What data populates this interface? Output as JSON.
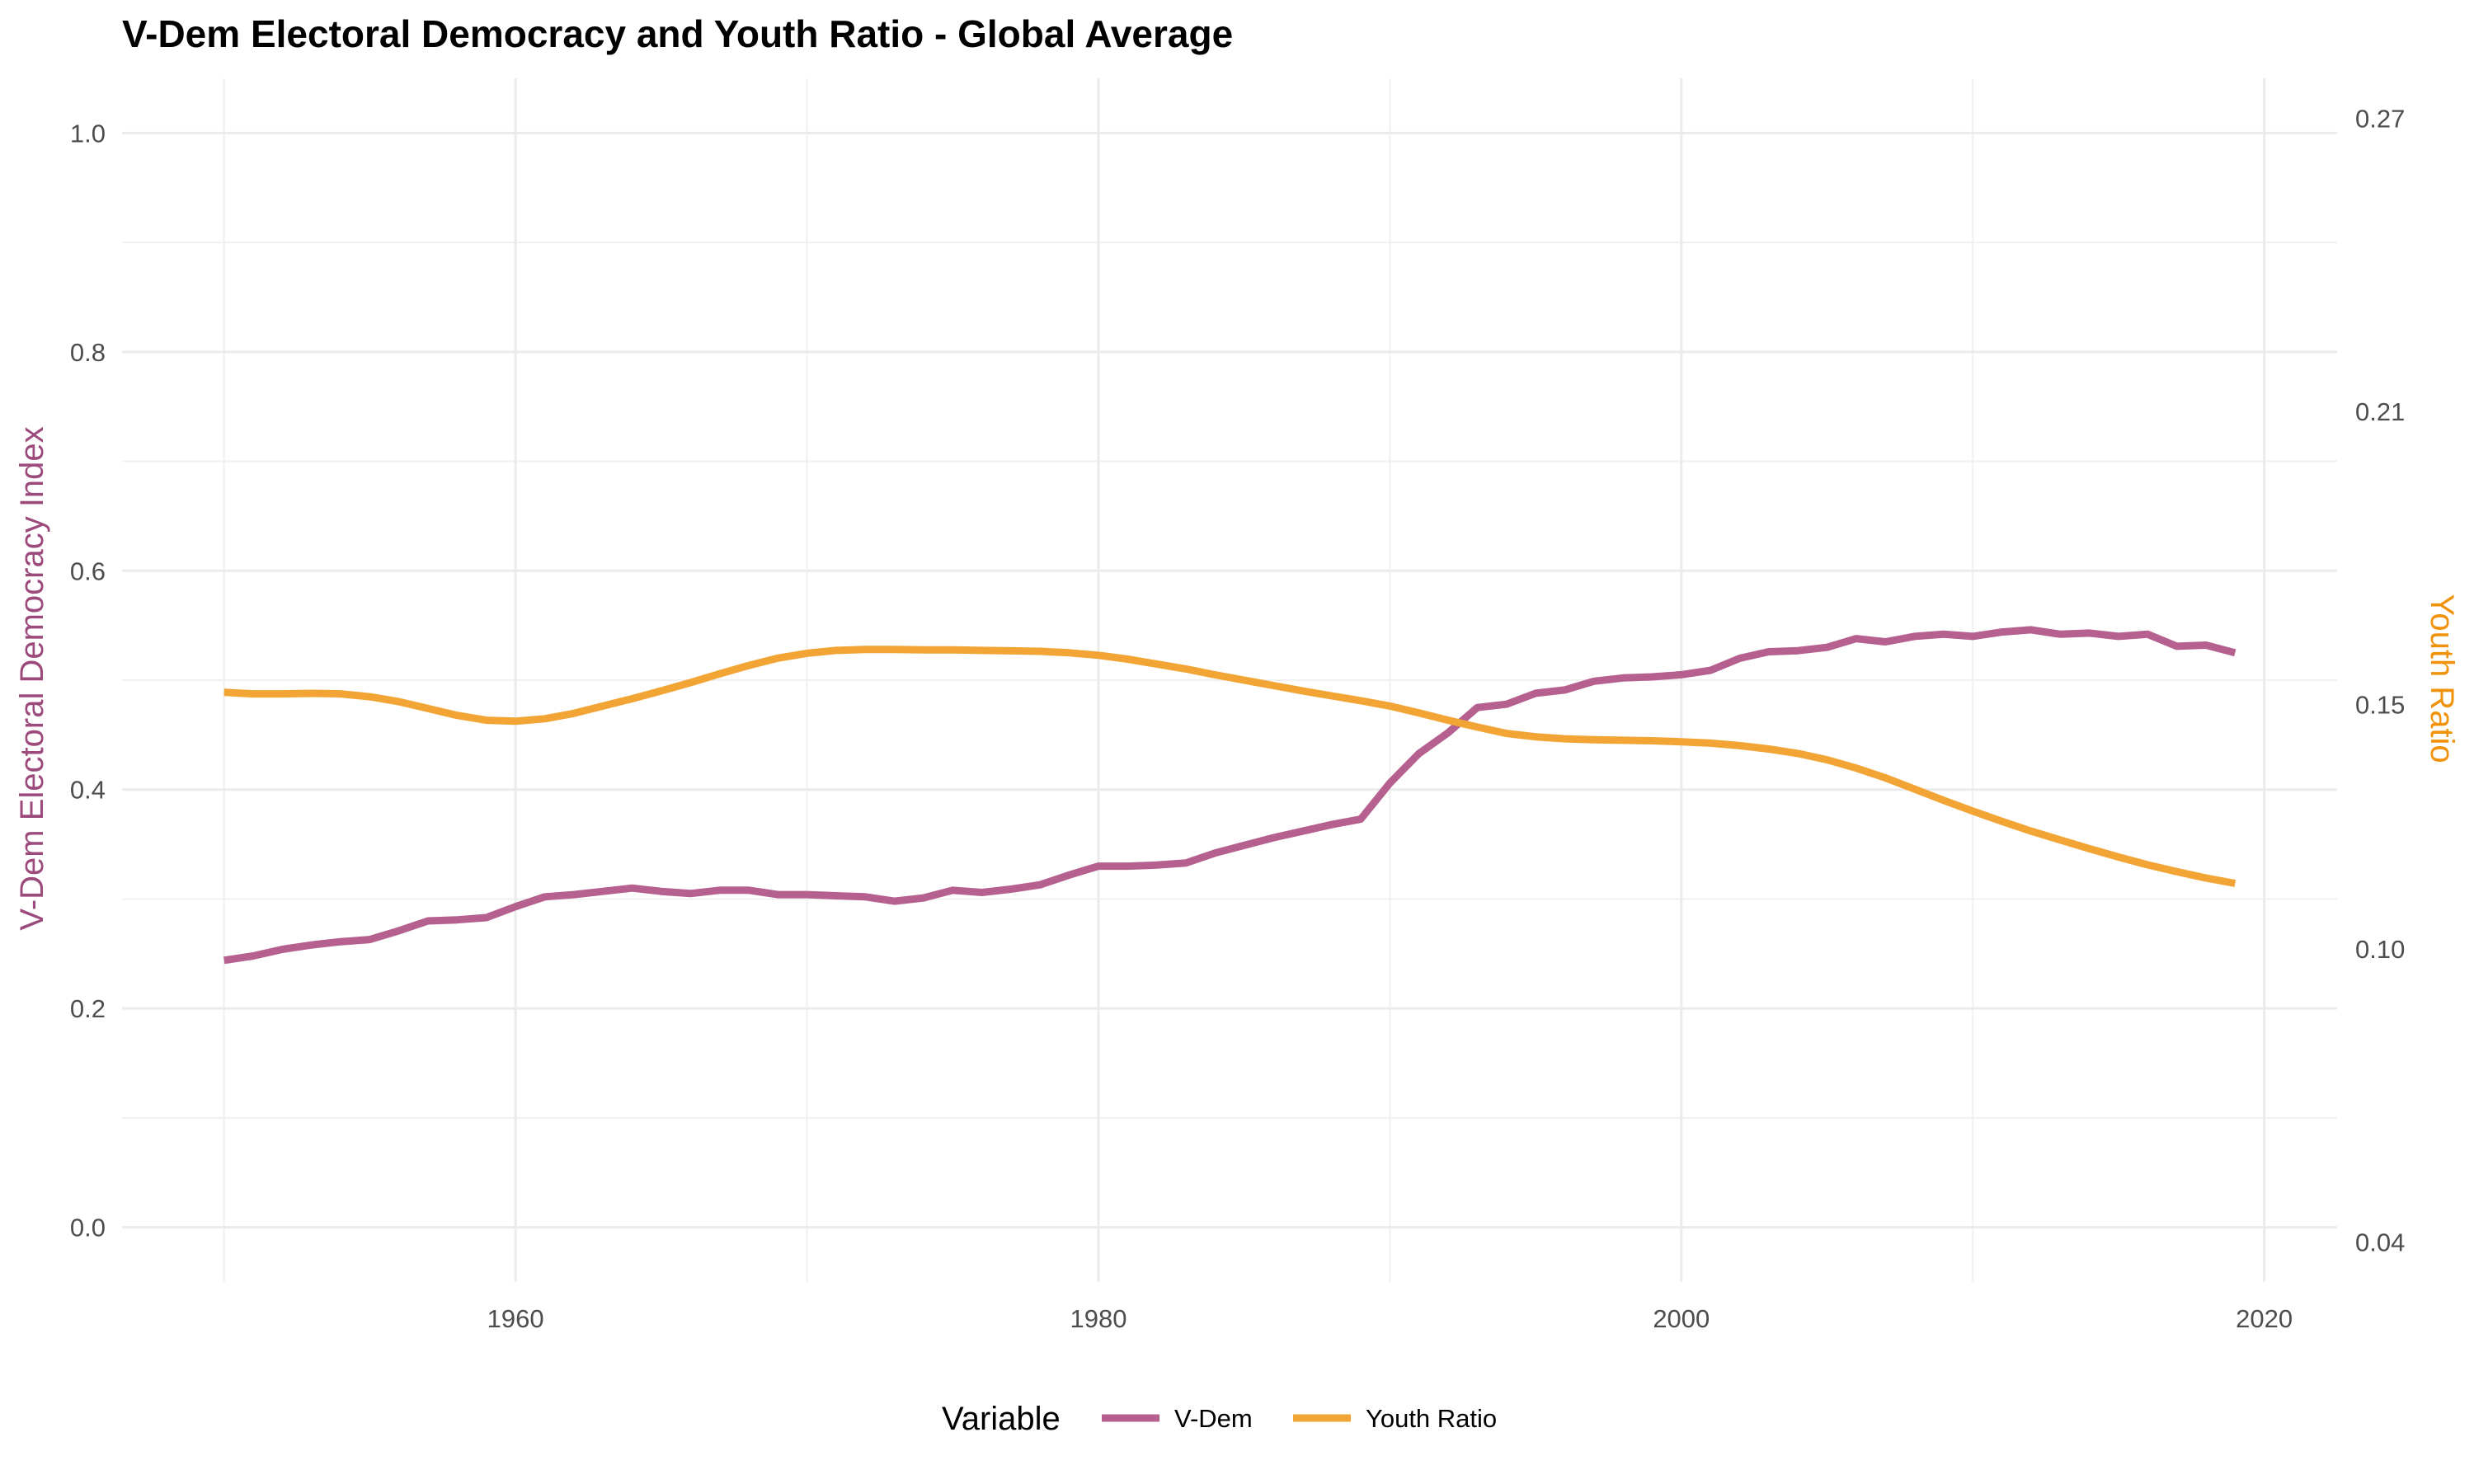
{
  "chart_data": {
    "type": "line",
    "title": "V-Dem Electoral Democracy and Youth Ratio - Global Average",
    "ylabel": "V-Dem Electoral Democracy Index",
    "y2label": "Youth Ratio",
    "xlim": [
      1946.5,
      2022.5
    ],
    "ylim": [
      -0.05,
      1.05
    ],
    "y2lim": [
      0.0318,
      0.2782
    ],
    "x_ticks": [
      1960,
      1980,
      2000,
      2020
    ],
    "y_ticks": [
      0.0,
      0.2,
      0.4,
      0.6,
      0.8,
      1.0
    ],
    "y_tick_labels": [
      "0.0",
      "0.2",
      "0.4",
      "0.6",
      "0.8",
      "1.0"
    ],
    "y2_ticks": [
      0.04,
      0.1,
      0.15,
      0.21,
      0.27
    ],
    "y2_tick_labels": [
      "0.04",
      "0.10",
      "0.15",
      "0.21",
      "0.27"
    ],
    "grid": true,
    "legend": {
      "title": "Variable",
      "position": "bottom"
    },
    "x": [
      1950,
      1951,
      1952,
      1953,
      1954,
      1955,
      1956,
      1957,
      1958,
      1959,
      1960,
      1961,
      1962,
      1963,
      1964,
      1965,
      1966,
      1967,
      1968,
      1969,
      1970,
      1971,
      1972,
      1973,
      1974,
      1975,
      1976,
      1977,
      1978,
      1979,
      1980,
      1981,
      1982,
      1983,
      1984,
      1985,
      1986,
      1987,
      1988,
      1989,
      1990,
      1991,
      1992,
      1993,
      1994,
      1995,
      1996,
      1997,
      1998,
      1999,
      2000,
      2001,
      2002,
      2003,
      2004,
      2005,
      2006,
      2007,
      2008,
      2009,
      2010,
      2011,
      2012,
      2013,
      2014,
      2015,
      2016,
      2017,
      2018,
      2019
    ],
    "series": [
      {
        "name": "V-Dem",
        "color": "#b5608f",
        "axis": "left",
        "values": [
          0.244,
          0.248,
          0.254,
          0.258,
          0.261,
          0.263,
          0.271,
          0.28,
          0.281,
          0.283,
          0.293,
          0.302,
          0.304,
          0.307,
          0.31,
          0.307,
          0.305,
          0.308,
          0.308,
          0.304,
          0.304,
          0.303,
          0.302,
          0.298,
          0.301,
          0.308,
          0.306,
          0.309,
          0.313,
          0.322,
          0.33,
          0.33,
          0.331,
          0.333,
          0.342,
          0.349,
          0.356,
          0.362,
          0.368,
          0.373,
          0.406,
          0.433,
          0.452,
          0.475,
          0.478,
          0.488,
          0.491,
          0.499,
          0.502,
          0.503,
          0.505,
          0.509,
          0.52,
          0.526,
          0.527,
          0.53,
          0.538,
          0.535,
          0.54,
          0.542,
          0.54,
          0.544,
          0.546,
          0.542,
          0.543,
          0.54,
          0.542,
          0.531,
          0.532,
          0.525
        ]
      },
      {
        "name": "Youth Ratio",
        "color": "#f2a535",
        "axis": "right",
        "values": [
          0.1525,
          0.1522,
          0.1522,
          0.1523,
          0.1522,
          0.1516,
          0.1506,
          0.1492,
          0.1478,
          0.1468,
          0.1466,
          0.1471,
          0.1482,
          0.1497,
          0.1512,
          0.1528,
          0.1545,
          0.1563,
          0.158,
          0.1595,
          0.1605,
          0.1611,
          0.1613,
          0.1613,
          0.1612,
          0.1612,
          0.1611,
          0.161,
          0.1609,
          0.1606,
          0.1601,
          0.1593,
          0.1583,
          0.1573,
          0.1561,
          0.155,
          0.1539,
          0.1528,
          0.1518,
          0.1508,
          0.1497,
          0.1483,
          0.1468,
          0.1454,
          0.1441,
          0.1434,
          0.143,
          0.1428,
          0.1427,
          0.1426,
          0.1424,
          0.1421,
          0.1416,
          0.1409,
          0.14,
          0.1387,
          0.137,
          0.135,
          0.1327,
          0.1304,
          0.1282,
          0.1261,
          0.1241,
          0.1223,
          0.1205,
          0.1188,
          0.1172,
          0.1158,
          0.1145,
          0.1134
        ]
      }
    ]
  }
}
